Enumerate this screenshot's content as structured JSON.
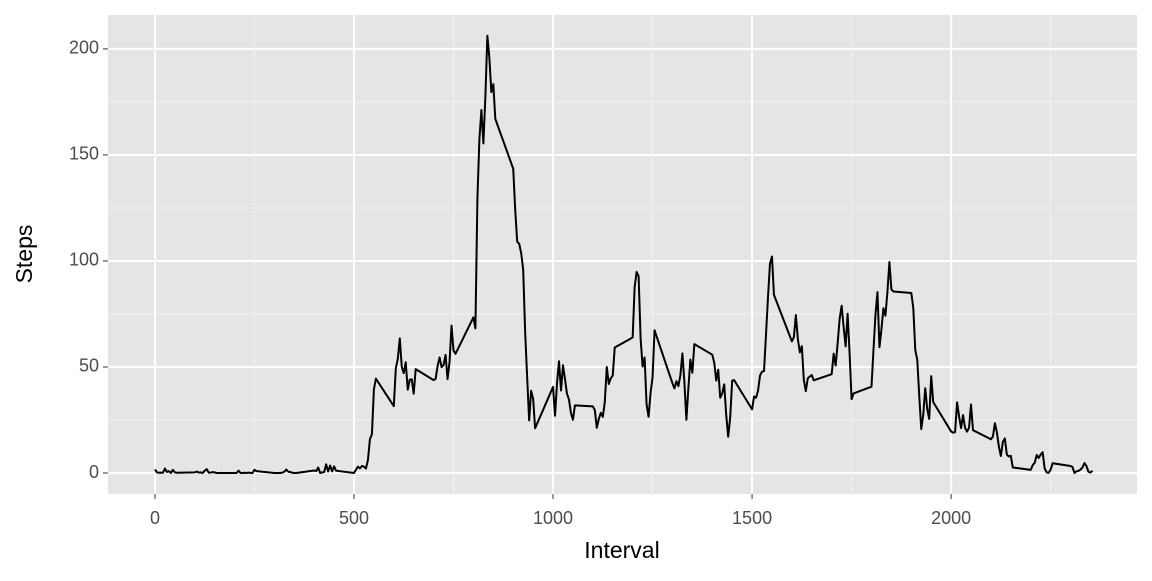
{
  "chart_data": {
    "type": "line",
    "x_label": "Interval",
    "y_label": "Steps",
    "x": [
      0,
      5,
      10,
      15,
      20,
      25,
      30,
      35,
      40,
      45,
      50,
      55,
      100,
      105,
      110,
      115,
      120,
      125,
      130,
      135,
      140,
      145,
      150,
      155,
      200,
      205,
      210,
      215,
      220,
      225,
      230,
      235,
      240,
      245,
      250,
      255,
      300,
      305,
      310,
      315,
      320,
      325,
      330,
      335,
      340,
      345,
      350,
      355,
      400,
      405,
      410,
      415,
      420,
      425,
      430,
      435,
      440,
      445,
      450,
      455,
      500,
      505,
      510,
      515,
      520,
      525,
      530,
      535,
      540,
      545,
      550,
      555,
      600,
      605,
      610,
      615,
      620,
      625,
      630,
      635,
      640,
      645,
      650,
      655,
      700,
      705,
      710,
      715,
      720,
      725,
      730,
      735,
      740,
      745,
      750,
      755,
      800,
      805,
      810,
      815,
      820,
      825,
      830,
      835,
      840,
      845,
      850,
      855,
      900,
      905,
      910,
      915,
      920,
      925,
      930,
      935,
      940,
      945,
      950,
      955,
      1000,
      1005,
      1010,
      1015,
      1020,
      1025,
      1030,
      1035,
      1040,
      1045,
      1050,
      1055,
      1100,
      1105,
      1110,
      1115,
      1120,
      1125,
      1130,
      1135,
      1140,
      1145,
      1150,
      1155,
      1200,
      1205,
      1210,
      1215,
      1220,
      1225,
      1230,
      1235,
      1240,
      1245,
      1250,
      1255,
      1300,
      1305,
      1310,
      1315,
      1320,
      1325,
      1330,
      1335,
      1340,
      1345,
      1350,
      1355,
      1400,
      1405,
      1410,
      1415,
      1420,
      1425,
      1430,
      1435,
      1440,
      1445,
      1450,
      1455,
      1500,
      1505,
      1510,
      1515,
      1520,
      1525,
      1530,
      1535,
      1540,
      1545,
      1550,
      1555,
      1600,
      1605,
      1610,
      1615,
      1620,
      1625,
      1630,
      1635,
      1640,
      1645,
      1650,
      1655,
      1700,
      1705,
      1710,
      1715,
      1720,
      1725,
      1730,
      1735,
      1740,
      1745,
      1750,
      1755,
      1800,
      1805,
      1810,
      1815,
      1820,
      1825,
      1830,
      1835,
      1840,
      1845,
      1850,
      1855,
      1900,
      1905,
      1910,
      1915,
      1920,
      1925,
      1930,
      1935,
      1940,
      1945,
      1950,
      1955,
      2000,
      2005,
      2010,
      2015,
      2020,
      2025,
      2030,
      2035,
      2040,
      2045,
      2050,
      2055,
      2100,
      2105,
      2110,
      2115,
      2120,
      2125,
      2130,
      2135,
      2140,
      2145,
      2150,
      2155,
      2200,
      2205,
      2210,
      2215,
      2220,
      2225,
      2230,
      2235,
      2240,
      2245,
      2250,
      2255,
      2300,
      2305,
      2310,
      2315,
      2320,
      2325,
      2330,
      2335,
      2340,
      2345,
      2350,
      2355
    ],
    "values": [
      1.7,
      0.3,
      0.1,
      0.2,
      0.1,
      2.1,
      0.5,
      0.9,
      0,
      1.5,
      0.3,
      0.1,
      0.3,
      0.7,
      0.2,
      0.3,
      0,
      1.1,
      1.8,
      0.2,
      0.2,
      0.4,
      0.3,
      0,
      0,
      0,
      1.1,
      0,
      0,
      0.1,
      0,
      0.2,
      0,
      0,
      1.5,
      0.9,
      0,
      0,
      0,
      0,
      0.2,
      0.6,
      1.6,
      0.6,
      0.5,
      0.1,
      0,
      0,
      1.2,
      0.9,
      2.6,
      0,
      0.3,
      0.4,
      4.1,
      0.7,
      3.5,
      0.8,
      3.1,
      1.1,
      0,
      1.6,
      3.0,
      2.2,
      3.3,
      3.0,
      2.1,
      6.1,
      16.0,
      18.3,
      39.5,
      44.5,
      31.5,
      49.3,
      53.8,
      63.5,
      50.0,
      47.1,
      52.2,
      39.3,
      44.0,
      44.2,
      37.4,
      49.0,
      43.8,
      44.4,
      50.5,
      54.5,
      49.9,
      51.0,
      55.7,
      44.3,
      52.3,
      69.5,
      57.8,
      56.2,
      73.4,
      68.2,
      129.4,
      157.5,
      171.2,
      155.4,
      177.3,
      206.2,
      195.9,
      179.6,
      183.4,
      167.0,
      143.5,
      124.0,
      109.1,
      108.1,
      103.7,
      96.0,
      66.2,
      45.2,
      24.8,
      38.8,
      35.0,
      21.1,
      40.6,
      27.0,
      42.4,
      52.7,
      38.9,
      50.8,
      44.3,
      37.4,
      34.7,
      28.3,
      25.1,
      31.9,
      31.4,
      29.7,
      21.3,
      25.5,
      28.4,
      26.5,
      33.4,
      50.0,
      42.0,
      44.6,
      46.0,
      59.2,
      63.9,
      87.7,
      94.8,
      92.8,
      63.4,
      50.2,
      54.5,
      32.4,
      26.5,
      37.7,
      45.1,
      67.3,
      42.3,
      39.9,
      43.3,
      41.0,
      46.2,
      56.4,
      42.8,
      25.1,
      40.0,
      53.5,
      47.3,
      60.8,
      55.8,
      52.0,
      43.6,
      48.7,
      35.5,
      37.5,
      41.8,
      27.5,
      17.1,
      26.1,
      43.6,
      43.8,
      30.0,
      36.1,
      35.5,
      38.8,
      46.0,
      47.8,
      48.1,
      65.3,
      82.9,
      98.7,
      102.1,
      84.0,
      62.1,
      64.1,
      74.5,
      63.2,
      56.9,
      59.8,
      43.9,
      38.6,
      44.7,
      45.5,
      46.2,
      43.7,
      46.6,
      56.3,
      50.7,
      61.2,
      72.7,
      78.9,
      68.9,
      59.7,
      75.1,
      56.5,
      34.8,
      37.5,
      40.7,
      58.0,
      74.7,
      85.3,
      59.3,
      67.8,
      77.7,
      74.2,
      85.3,
      99.5,
      86.6,
      85.6,
      84.9,
      77.8,
      58.0,
      53.4,
      36.3,
      20.7,
      27.4,
      40.0,
      30.2,
      25.5,
      45.7,
      33.5,
      19.6,
      19.0,
      19.3,
      33.3,
      26.8,
      21.2,
      27.3,
      21.3,
      19.5,
      21.3,
      32.3,
      20.2,
      15.9,
      17.2,
      23.5,
      19.2,
      12.5,
      8.0,
      14.7,
      16.3,
      8.7,
      7.8,
      8.1,
      2.6,
      1.5,
      3.7,
      4.8,
      8.5,
      7.1,
      8.7,
      9.8,
      2.2,
      0.3,
      0.1,
      1.6,
      4.6,
      3.3,
      2.8,
      0,
      0.8,
      1.0,
      1.6,
      2.6,
      4.7,
      3.3,
      0.6,
      0.2,
      1.1
    ],
    "color": "#000000",
    "xlim": [
      -118,
      2467
    ],
    "xticks": [
      0,
      500,
      1000,
      1500,
      2000
    ],
    "ylim": [
      -9.9,
      216
    ],
    "yticks": [
      0,
      50,
      100,
      150,
      200
    ],
    "grid": true
  }
}
